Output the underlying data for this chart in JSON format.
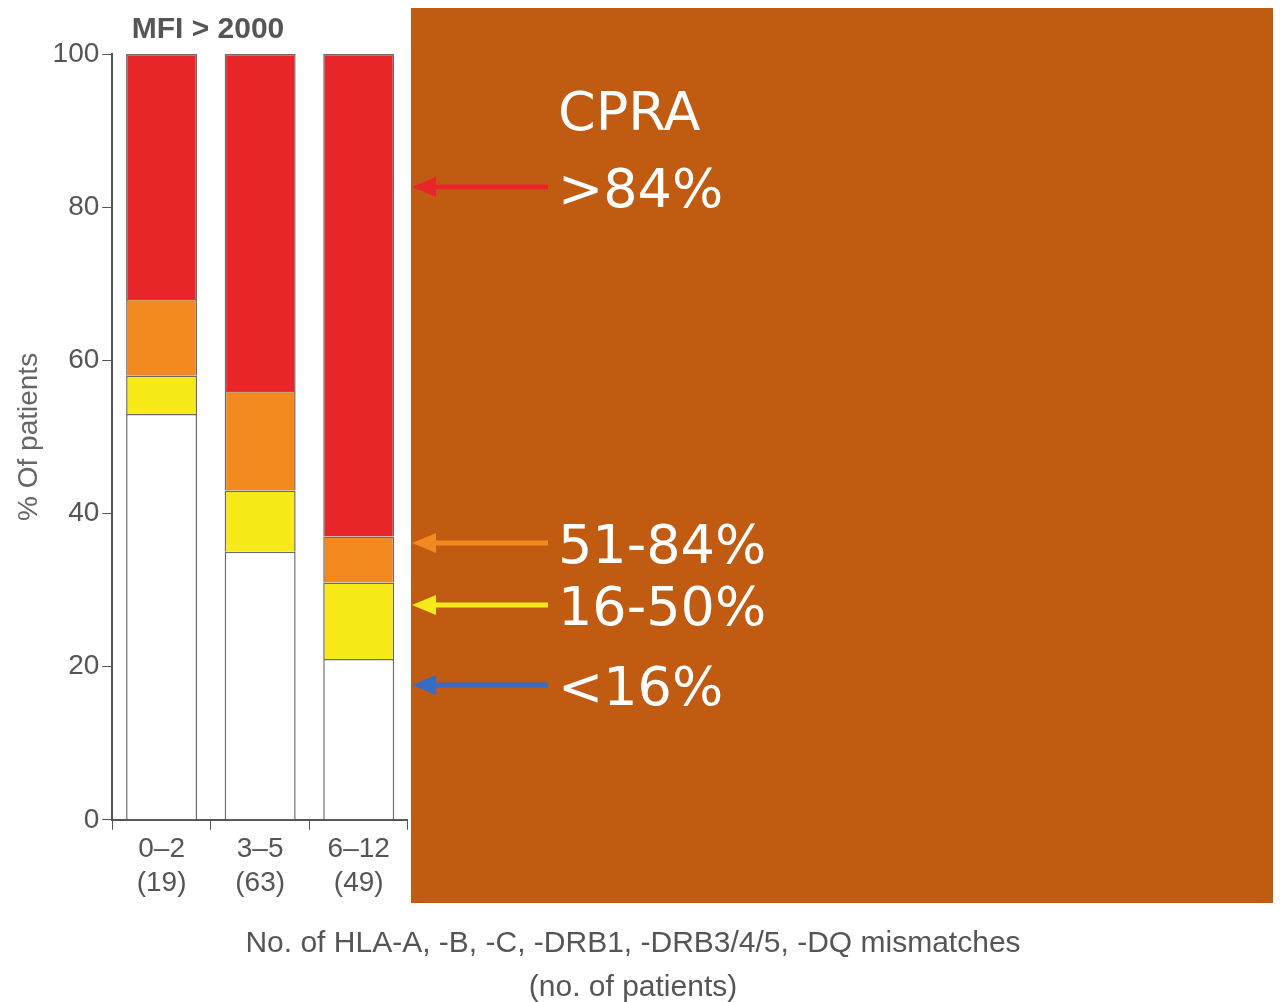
{
  "chart_data": {
    "type": "bar",
    "stacked": true,
    "title": "MFI > 2000",
    "xlabel": "No. of HLA-A, -B, -C, -DRB1, -DRB3/4/5, -DQ mismatches\n(no. of patients)",
    "ylabel": "% Of patients",
    "legend_title": "CPRA",
    "legend": "right",
    "grid": false,
    "categories": [
      "0–2 (19)",
      "3–5 (63)",
      "6–12 (49)"
    ],
    "ylim": [
      0,
      100
    ],
    "yticks": [
      0,
      20,
      40,
      60,
      80,
      100
    ],
    "series": [
      {
        "name": "<16%",
        "color": "#ffffff",
        "values": [
          53,
          35,
          21
        ]
      },
      {
        "name": "16-50%",
        "color": "#f7ea18",
        "values": [
          5,
          8,
          10
        ]
      },
      {
        "name": "51-84%",
        "color": "#f28a1f",
        "values": [
          10,
          13,
          6
        ]
      },
      {
        "name": ">84%",
        "color": "#e8262a",
        "values": [
          32,
          44,
          63
        ]
      }
    ]
  }
}
